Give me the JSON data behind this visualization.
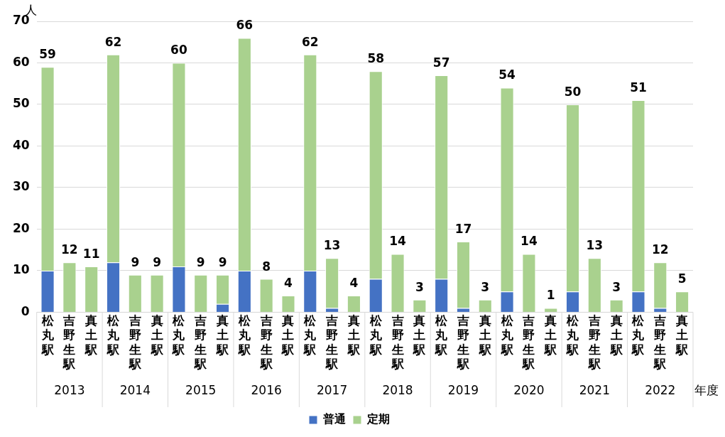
{
  "chart_data": {
    "type": "bar",
    "stacked": true,
    "ylabel": "人",
    "xlabel": "年度",
    "categories": [
      "松丸駅",
      "吉野生駅",
      "真土駅",
      "松丸駅",
      "吉野生駅",
      "真土駅",
      "松丸駅",
      "吉野生駅",
      "真土駅",
      "松丸駅",
      "吉野生駅",
      "真土駅",
      "松丸駅",
      "吉野生駅",
      "真土駅",
      "松丸駅",
      "吉野生駅",
      "真土駅",
      "松丸駅",
      "吉野生駅",
      "真土駅",
      "松丸駅",
      "吉野生駅",
      "真土駅",
      "松丸駅",
      "吉野生駅",
      "真土駅",
      "松丸駅",
      "吉野生駅",
      "真土駅"
    ],
    "series": [
      {
        "name": "普通",
        "color": "#4472c4",
        "values": [
          10,
          0,
          0,
          12,
          0,
          0,
          11,
          0,
          2,
          10,
          0,
          0,
          10,
          1,
          0,
          8,
          0,
          0,
          8,
          1,
          0,
          5,
          0,
          0,
          5,
          0,
          0,
          5,
          1,
          0
        ]
      },
      {
        "name": "定期",
        "color": "#a9d18e",
        "values": [
          49,
          12,
          11,
          50,
          9,
          9,
          49,
          9,
          7,
          56,
          8,
          4,
          52,
          12,
          4,
          50,
          14,
          3,
          49,
          16,
          3,
          49,
          14,
          1,
          45,
          13,
          3,
          46,
          11,
          5
        ]
      }
    ],
    "totals": [
      "59",
      "12",
      "11",
      "62",
      "9",
      "9",
      "60",
      "9",
      "9",
      "66",
      "8",
      "4",
      "62",
      "13",
      "4",
      "58",
      "14",
      "3",
      "57",
      "17",
      "3",
      "54",
      "14",
      "1",
      "50",
      "13",
      "3",
      "51",
      "12",
      "5"
    ],
    "annotations": [
      "2013",
      "2014",
      "2015",
      "2016",
      "2017",
      "2018",
      "2019",
      "2020",
      "2021",
      "2022"
    ],
    "ylim": [
      0,
      70
    ],
    "yticks": [
      0,
      10,
      20,
      30,
      40,
      50,
      60,
      70
    ],
    "grid": "y",
    "legend": "bottom"
  }
}
